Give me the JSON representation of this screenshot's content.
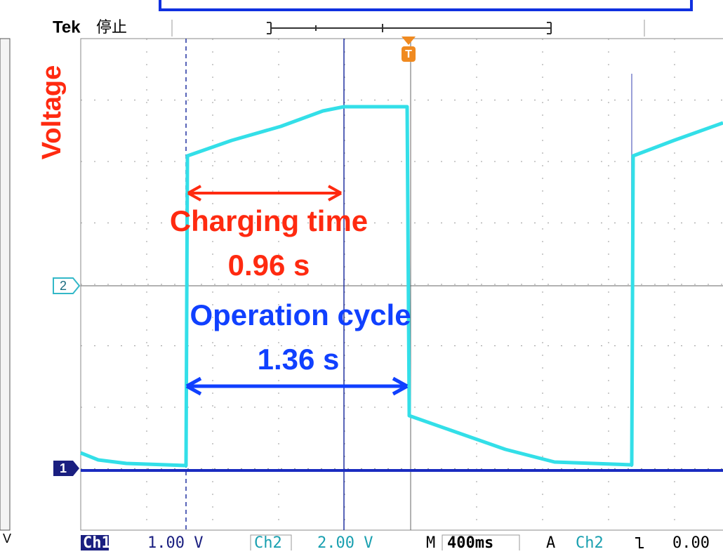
{
  "header": {
    "brand": "Tek",
    "status": "停止"
  },
  "annotations": {
    "y_label": "Voltage",
    "charging_label": "Charging time",
    "charging_value": "0.96 s",
    "cycle_label": "Operation cycle",
    "cycle_value": "1.36 s"
  },
  "markers": {
    "ch2": "2",
    "ch1": "1",
    "trigger": "T"
  },
  "side_unit": "V",
  "status_bar": {
    "ch1": "Ch1",
    "ch1_scale": "1.00 V",
    "ch2": "Ch2",
    "ch2_scale": "2.00 V",
    "time_mode": "M",
    "time_scale": "400ms",
    "trigger_mode": "A",
    "trigger_source": "Ch2",
    "trigger_level": "0.00"
  }
}
